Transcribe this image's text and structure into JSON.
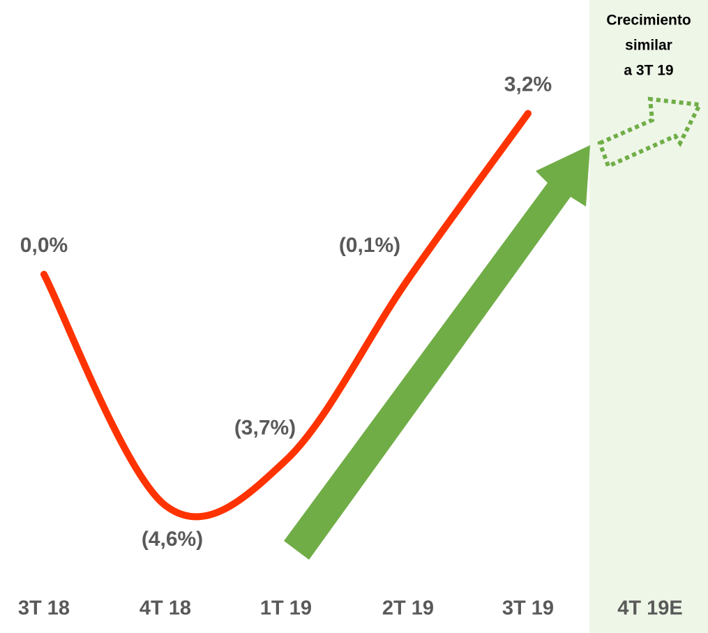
{
  "chart_data": {
    "type": "line",
    "categories": [
      "3T 18",
      "4T 18",
      "1T 19",
      "2T 19",
      "3T 19",
      "4T 19E"
    ],
    "series": [
      {
        "name": null,
        "color": "#ff3300",
        "values": [
          0.0,
          -4.6,
          -3.7,
          -0.1,
          3.2,
          null
        ],
        "value_labels": [
          "0,0%",
          "(4,6%)",
          "(3,7%)",
          "(0,1%)",
          "3,2%",
          null
        ]
      }
    ],
    "ylim": [
      -6,
      5
    ],
    "annotation": [
      "Crecimiento",
      "similar",
      "a 3T 19"
    ]
  }
}
